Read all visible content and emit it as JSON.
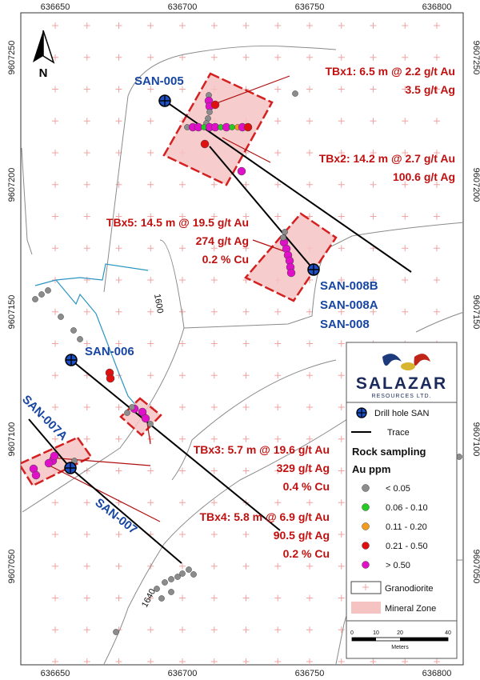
{
  "x_ticks": [
    "636650",
    "636700",
    "636750",
    "636800"
  ],
  "y_ticks": [
    "9607250",
    "9607200",
    "9607150",
    "9607100",
    "9607050"
  ],
  "north_label": "N",
  "holes": {
    "san005": "SAN-005",
    "san006": "SAN-006",
    "san007a": "SAN-007A",
    "san007": "SAN-007",
    "san008b": "SAN-008B",
    "san008a": "SAN-008A",
    "san008": "SAN-008"
  },
  "contour_labels": [
    "1600",
    "1640"
  ],
  "intercepts": {
    "tbx1": [
      "TBx1: 6.5 m @ 2.2 g/t Au",
      "3.5 g/t Ag"
    ],
    "tbx2": [
      "TBx2: 14.2 m @ 2.7 g/t Au",
      "100.6 g/t Ag"
    ],
    "tbx5": [
      "TBx5: 14.5 m @ 19.5 g/t Au",
      "274 g/t Ag",
      "0.2 % Cu"
    ],
    "tbx3": [
      "TBx3: 5.7 m @ 19.6 g/t Au",
      "329 g/t Ag",
      "0.4 % Cu"
    ],
    "tbx4": [
      "TBx4: 5.8 m @ 6.9 g/t Au",
      "90.5 g/t Ag",
      "0.2 % Cu"
    ]
  },
  "logo": {
    "name": "SALAZAR",
    "sub": "RESOURCES LTD."
  },
  "legend": {
    "drill_hole": "Drill hole SAN",
    "trace": "Trace",
    "rock_title": "Rock sampling",
    "au_title": "Au ppm",
    "classes": [
      {
        "label": "< 0.05",
        "color": "#8c8c8c"
      },
      {
        "label": "0.06 - 0.10",
        "color": "#22cc22"
      },
      {
        "label": "0.11 - 0.20",
        "color": "#f59a1a"
      },
      {
        "label": "0.21 - 0.50",
        "color": "#e01010"
      },
      {
        "label": "> 0.50",
        "color": "#e010c8"
      }
    ],
    "granodiorite": "Granodiorite",
    "mineral_zone": "Mineral Zone"
  },
  "scale": {
    "ticks": [
      "0",
      "10",
      "20",
      "40"
    ],
    "unit": "Meters"
  },
  "colors": {
    "hole_label": "#1746a2",
    "intercept": "#c01010",
    "zone_fill": "#f6c3c3",
    "zone_border": "#d42020",
    "stream": "#2b95c2",
    "road": "#8a8a8a",
    "grid_cross": "#f0a3a3"
  }
}
